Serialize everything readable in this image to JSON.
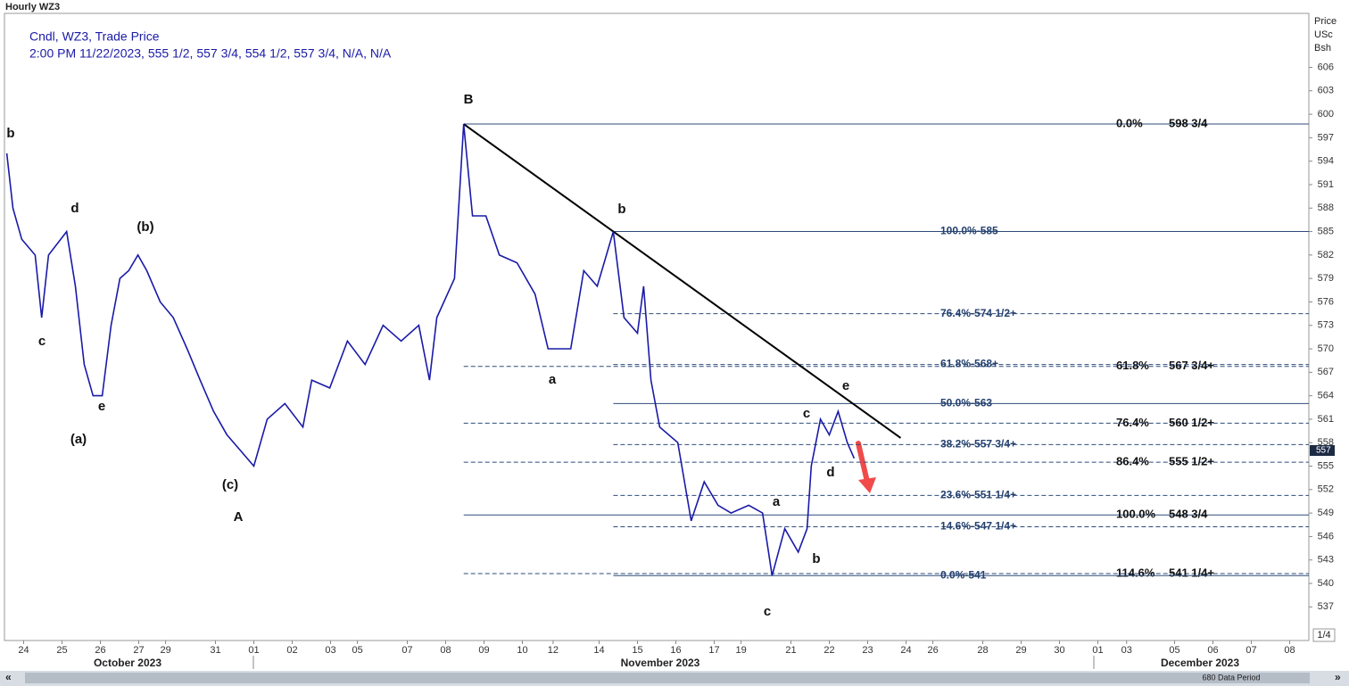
{
  "chart_data": {
    "type": "line",
    "title": "Hourly WZ3",
    "legend_line1": "Cndl, WZ3, Trade Price",
    "legend_line2": "2:00 PM 11/22/2023, 555 1/2, 557 3/4, 554 1/2, 557 3/4, N/A, N/A",
    "axis_header": [
      "Price",
      "USc",
      "Bsh"
    ],
    "current_price": 557,
    "months": [
      "October 2023",
      "November 2023",
      "December 2023"
    ],
    "footer": "680 Data Period",
    "corner_label": "1/4",
    "series": [
      {
        "name": "WZ3",
        "color": "#1a1aa8",
        "x": [
          -0.44,
          -0.28,
          -0.05,
          0.3,
          0.47,
          0.65,
          1.12,
          1.35,
          1.58,
          1.81,
          2.05,
          2.28,
          2.51,
          2.74,
          2.98,
          3.21,
          3.56,
          3.9,
          4.26,
          4.6,
          4.95,
          5.3,
          5.65,
          6.0,
          6.35,
          6.81,
          7.28,
          7.51,
          7.98,
          8.44,
          8.9,
          9.37,
          9.84,
          10.3,
          10.58,
          10.77,
          11.23,
          11.47,
          11.7,
          12.05,
          12.4,
          12.86,
          13.33,
          13.67,
          14.26,
          14.6,
          14.95,
          15.37,
          15.65,
          16.0,
          16.16,
          16.35,
          16.58,
          17.05,
          17.4,
          17.74,
          18.1,
          18.44,
          18.9,
          19.26,
          19.51,
          19.84,
          20.19,
          20.42,
          20.53,
          20.77,
          21.0,
          21.23,
          21.47,
          21.65
        ],
        "values": [
          595,
          588,
          584,
          582,
          574,
          582,
          585,
          578,
          568,
          564,
          564,
          573,
          579,
          580,
          582,
          580,
          576,
          574,
          570,
          566,
          562,
          559,
          557,
          555,
          561,
          563,
          560,
          566,
          565,
          571,
          568,
          573,
          571,
          573,
          566,
          574,
          579,
          598.75,
          587,
          587,
          582,
          581,
          577,
          570,
          570,
          580,
          578,
          585,
          574,
          572,
          578,
          566,
          560,
          558,
          548,
          553,
          550,
          549,
          550,
          549,
          541,
          547,
          544,
          547,
          555,
          561,
          559,
          562,
          558,
          556
        ]
      }
    ],
    "xlim": [
      -0.5,
      33.5
    ],
    "xticks": [
      {
        "value": 0,
        "label": "24"
      },
      {
        "value": 1,
        "label": "25"
      },
      {
        "value": 2,
        "label": "26"
      },
      {
        "value": 3,
        "label": "27"
      },
      {
        "value": 3.7,
        "label": "29"
      },
      {
        "value": 5,
        "label": "31"
      },
      {
        "value": 6,
        "label": "01"
      },
      {
        "value": 7,
        "label": "02"
      },
      {
        "value": 8,
        "label": "03"
      },
      {
        "value": 8.7,
        "label": "05"
      },
      {
        "value": 10,
        "label": "07"
      },
      {
        "value": 11,
        "label": "08"
      },
      {
        "value": 12,
        "label": "09"
      },
      {
        "value": 13,
        "label": "10"
      },
      {
        "value": 13.8,
        "label": "12"
      },
      {
        "value": 15,
        "label": "14"
      },
      {
        "value": 16,
        "label": "15"
      },
      {
        "value": 17,
        "label": "16"
      },
      {
        "value": 18,
        "label": "17"
      },
      {
        "value": 18.7,
        "label": "19"
      },
      {
        "value": 20,
        "label": "21"
      },
      {
        "value": 21,
        "label": "22"
      },
      {
        "value": 22,
        "label": "23"
      },
      {
        "value": 23,
        "label": "24"
      },
      {
        "value": 23.7,
        "label": "26"
      },
      {
        "value": 25,
        "label": "28"
      },
      {
        "value": 26,
        "label": "29"
      },
      {
        "value": 27,
        "label": "30"
      },
      {
        "value": 28,
        "label": "01"
      },
      {
        "value": 28.75,
        "label": "03"
      },
      {
        "value": 30,
        "label": "05"
      },
      {
        "value": 31,
        "label": "06"
      },
      {
        "value": 32,
        "label": "07"
      },
      {
        "value": 33,
        "label": "08"
      }
    ],
    "ylim": [
      532.7,
      612.9
    ],
    "yticks": [
      537,
      540,
      543,
      546,
      549,
      552,
      555,
      558,
      561,
      564,
      567,
      570,
      573,
      576,
      579,
      582,
      585,
      588,
      591,
      594,
      597,
      600,
      603,
      606
    ],
    "trendline": {
      "x": [
        11.47,
        22.86
      ],
      "y": [
        598.75,
        558.6
      ],
      "color": "#000000"
    },
    "levels_left": {
      "from_x": 15.37,
      "color": "#2e4b7a",
      "items": [
        {
          "label": "100.0%-585",
          "price": 585,
          "dashed": false
        },
        {
          "label": "76.4%-574 1/2+",
          "price": 574.5,
          "dashed": true
        },
        {
          "label": "61.8%-568+",
          "price": 568,
          "dashed": true
        },
        {
          "label": "50.0%-563",
          "price": 563,
          "dashed": false
        },
        {
          "label": "38.2%-557 3/4+",
          "price": 557.75,
          "dashed": true
        },
        {
          "label": "23.6%-551 1/4+",
          "price": 551.25,
          "dashed": true
        },
        {
          "label": "14.6%-547 1/4+",
          "price": 547.25,
          "dashed": true
        },
        {
          "label": "0.0%-541",
          "price": 541,
          "dashed": false
        }
      ]
    },
    "levels_right": {
      "from_x": 11.47,
      "color": "#2e4b7a",
      "items": [
        {
          "pct": "0.0%",
          "price_label": "598 3/4",
          "price": 598.75,
          "dashed": false
        },
        {
          "pct": "61.8%",
          "price_label": "567 3/4+",
          "price": 567.75,
          "dashed": true
        },
        {
          "pct": "76.4%",
          "price_label": "560 1/2+",
          "price": 560.5,
          "dashed": true
        },
        {
          "pct": "86.4%",
          "price_label": "555 1/2+",
          "price": 555.5,
          "dashed": true
        },
        {
          "pct": "100.0%",
          "price_label": "548 3/4",
          "price": 548.75,
          "dashed": false
        },
        {
          "pct": "114.6%",
          "price_label": "541 1/4+",
          "price": 541.25,
          "dashed": true
        }
      ]
    },
    "annotations": [
      "B",
      "b",
      "d",
      "(b)",
      "c",
      "e",
      "(a)",
      "(c)",
      "A",
      "b",
      "a",
      "c",
      "e",
      "d",
      "a",
      "b",
      "c"
    ]
  }
}
